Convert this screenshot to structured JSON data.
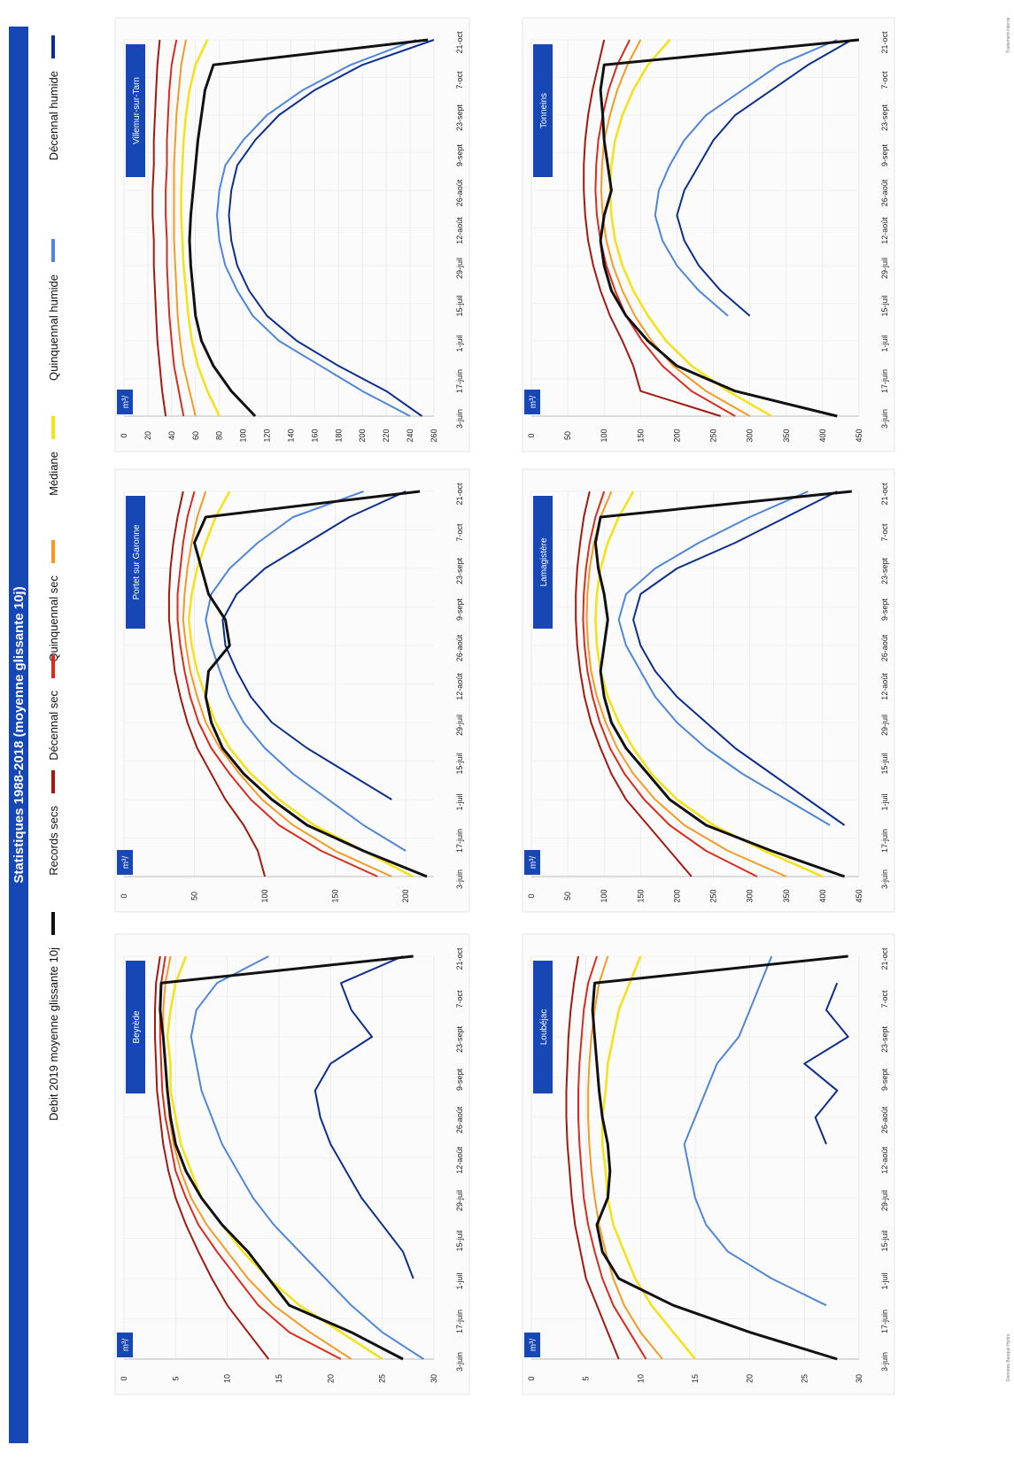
{
  "main_title": "Statistiques 1988-2018 (moyenne glissante 10j)",
  "legend": [
    {
      "label": "Décennal humide",
      "color": "#0d2e8c"
    },
    {
      "label": "Quinquennal humide",
      "color": "#4f86d9"
    },
    {
      "label": "Médiane",
      "color": "#f5e11c"
    },
    {
      "label": "Quinquennal sec",
      "color": "#f59a23"
    },
    {
      "label": "Décennal sec",
      "color": "#d62d20"
    },
    {
      "label": "Records secs",
      "color": "#a01a10"
    },
    {
      "label": "Debit 2019 moyenne glissante 10j",
      "color": "#111111"
    }
  ],
  "unit_label": "m³/",
  "x_ticks": [
    "3-juin",
    "17-juin",
    "1-juil",
    "15-juil",
    "29-juil",
    "12-août",
    "26-août",
    "9-sept",
    "23-sept",
    "7-oct",
    "21-oct"
  ],
  "chart_data": [
    {
      "type": "line",
      "title": "Beyrède",
      "xlabel": "",
      "ylabel": "m³/",
      "ylim": [
        0,
        30
      ],
      "yticks": [
        0,
        5,
        10,
        15,
        20,
        25,
        30
      ],
      "x": [
        0,
        10,
        20,
        30,
        40,
        50,
        60,
        70,
        80,
        90,
        100,
        110,
        120,
        130,
        140,
        150
      ],
      "series": [
        {
          "name": "Décennal humide",
          "values": [
            null,
            null,
            null,
            28,
            27,
            25,
            23,
            21.5,
            20,
            19,
            18.5,
            20,
            24,
            22,
            21,
            27
          ]
        },
        {
          "name": "Quinquennal humide",
          "values": [
            29,
            25,
            22,
            19.5,
            17,
            14.5,
            12.5,
            11,
            9.5,
            8.5,
            7.5,
            7,
            6.5,
            7,
            9,
            14
          ]
        },
        {
          "name": "Médiane",
          "values": [
            25,
            21,
            17,
            14,
            11.5,
            9.5,
            7.5,
            6.5,
            5.5,
            5,
            4.5,
            4.5,
            4.2,
            4.5,
            5,
            6
          ]
        },
        {
          "name": "Quinquennal sec",
          "values": [
            22,
            18,
            14.5,
            12,
            10,
            8,
            6.5,
            5.5,
            4.8,
            4.4,
            4.2,
            4,
            3.8,
            3.8,
            4,
            4.5
          ]
        },
        {
          "name": "Décennal sec",
          "values": [
            21,
            16,
            13,
            11,
            9,
            7.2,
            6,
            5,
            4.5,
            4,
            3.7,
            3.6,
            3.5,
            3.5,
            3.6,
            4
          ]
        },
        {
          "name": "Records secs",
          "values": [
            14,
            12,
            10,
            8.5,
            7.2,
            6,
            5,
            4.3,
            3.8,
            3.5,
            3.2,
            3.1,
            3,
            3,
            3.1,
            3.5
          ]
        },
        {
          "name": "Debit 2019 moyenne glissante 10j",
          "values": [
            27,
            22,
            16,
            14,
            12,
            9.5,
            7.5,
            6,
            5,
            4.5,
            4.2,
            4,
            3.8,
            3.5,
            3.6,
            28
          ]
        }
      ]
    },
    {
      "type": "line",
      "title": "Portet sur Garonne",
      "xlabel": "",
      "ylabel": "m³/",
      "ylim": [
        0,
        220
      ],
      "yticks": [
        0,
        50,
        100,
        150,
        200
      ],
      "x": [
        0,
        10,
        20,
        30,
        40,
        50,
        60,
        70,
        80,
        90,
        100,
        110,
        120,
        130,
        140,
        150
      ],
      "series": [
        {
          "name": "Décennal humide",
          "values": [
            null,
            null,
            null,
            190,
            160,
            130,
            105,
            90,
            80,
            72,
            70,
            80,
            100,
            130,
            160,
            200
          ]
        },
        {
          "name": "Quinquennal humide",
          "values": [
            null,
            200,
            170,
            145,
            120,
            100,
            85,
            75,
            68,
            62,
            58,
            62,
            75,
            95,
            120,
            170
          ]
        },
        {
          "name": "Médiane",
          "values": [
            205,
            170,
            135,
            110,
            90,
            75,
            65,
            58,
            52,
            48,
            46,
            48,
            52,
            58,
            65,
            75
          ]
        },
        {
          "name": "Quinquennal sec",
          "values": [
            190,
            150,
            120,
            98,
            82,
            68,
            58,
            52,
            47,
            44,
            42,
            43,
            45,
            48,
            52,
            58
          ]
        },
        {
          "name": "Décennal sec",
          "values": [
            180,
            140,
            110,
            90,
            75,
            62,
            53,
            47,
            43,
            40,
            38,
            38,
            40,
            42,
            45,
            50
          ]
        },
        {
          "name": "Records secs",
          "values": [
            100,
            95,
            85,
            72,
            62,
            52,
            45,
            40,
            36,
            34,
            32,
            32,
            33,
            35,
            38,
            42
          ]
        },
        {
          "name": "Debit 2019 moyenne glissante 10j",
          "values": [
            215,
            170,
            130,
            105,
            85,
            70,
            62,
            58,
            60,
            75,
            72,
            60,
            55,
            50,
            58,
            210
          ]
        }
      ]
    },
    {
      "type": "line",
      "title": "Villemur-sur-Tarn",
      "xlabel": "",
      "ylabel": "m³/",
      "ylim": [
        0,
        260
      ],
      "yticks": [
        0,
        20,
        40,
        60,
        80,
        100,
        120,
        140,
        160,
        180,
        200,
        220,
        240,
        260
      ],
      "x": [
        0,
        10,
        20,
        30,
        40,
        50,
        60,
        70,
        80,
        90,
        100,
        110,
        120,
        130,
        140,
        150
      ],
      "series": [
        {
          "name": "Décennal humide",
          "values": [
            250,
            220,
            180,
            145,
            120,
            105,
            95,
            90,
            88,
            90,
            95,
            110,
            130,
            160,
            200,
            260
          ]
        },
        {
          "name": "Quinquennal humide",
          "values": [
            240,
            200,
            165,
            130,
            108,
            95,
            85,
            80,
            78,
            80,
            85,
            100,
            120,
            150,
            190,
            245
          ]
        },
        {
          "name": "Médiane",
          "values": [
            80,
            70,
            62,
            57,
            54,
            52,
            50,
            49,
            48,
            48,
            49,
            50,
            52,
            55,
            60,
            70
          ]
        },
        {
          "name": "Quinquennal sec",
          "values": [
            60,
            55,
            50,
            47,
            45,
            44,
            43,
            42,
            42,
            42,
            42,
            43,
            44,
            46,
            48,
            52
          ]
        },
        {
          "name": "Décennal sec",
          "values": [
            50,
            46,
            42,
            40,
            38,
            37,
            36,
            36,
            35,
            35,
            36,
            36,
            37,
            38,
            40,
            44
          ]
        },
        {
          "name": "Records secs",
          "values": [
            35,
            32,
            30,
            28,
            27,
            26,
            25,
            25,
            24,
            24,
            25,
            25,
            26,
            27,
            28,
            30
          ]
        },
        {
          "name": "Debit 2019 moyenne glissante 10j",
          "values": [
            110,
            90,
            75,
            65,
            60,
            58,
            56,
            55,
            56,
            58,
            60,
            62,
            65,
            68,
            75,
            255
          ]
        }
      ]
    },
    {
      "type": "line",
      "title": "Loubéjac",
      "xlabel": "",
      "ylabel": "m³/",
      "ylim": [
        0,
        30
      ],
      "yticks": [
        0,
        5,
        10,
        15,
        20,
        25,
        30
      ],
      "x": [
        0,
        10,
        20,
        30,
        40,
        50,
        60,
        70,
        80,
        90,
        100,
        110,
        120,
        130,
        140,
        150
      ],
      "series": [
        {
          "name": "Décennal humide",
          "values": [
            null,
            null,
            null,
            null,
            28,
            null,
            null,
            null,
            27,
            26,
            28,
            25,
            29,
            27,
            28,
            null
          ]
        },
        {
          "name": "Quinquennal humide",
          "values": [
            null,
            null,
            27,
            22,
            18,
            16,
            15,
            14.5,
            14,
            15,
            16,
            17,
            19,
            20,
            21,
            22
          ]
        },
        {
          "name": "Médiane",
          "values": [
            15,
            13,
            11,
            9.5,
            8.5,
            7.5,
            7,
            6.8,
            6.5,
            6.5,
            6.8,
            7,
            7.5,
            8,
            9,
            10
          ]
        },
        {
          "name": "Quinquennal sec",
          "values": [
            12,
            10,
            8.5,
            7.5,
            6.8,
            6.2,
            5.8,
            5.5,
            5.3,
            5.2,
            5.2,
            5.3,
            5.5,
            5.8,
            6.2,
            7
          ]
        },
        {
          "name": "Décennal sec",
          "values": [
            10.5,
            9,
            7.5,
            6.5,
            5.8,
            5.2,
            4.8,
            4.6,
            4.4,
            4.3,
            4.3,
            4.4,
            4.6,
            4.8,
            5.2,
            6
          ]
        },
        {
          "name": "Records secs",
          "values": [
            8,
            7,
            6,
            5,
            4.5,
            4,
            3.7,
            3.5,
            3.3,
            3.2,
            3.2,
            3.3,
            3.4,
            3.6,
            3.9,
            4.3
          ]
        },
        {
          "name": "Debit 2019 moyenne glissante 10j",
          "values": [
            28,
            20,
            13,
            8,
            6.5,
            6,
            7,
            7.2,
            7,
            6.5,
            6.2,
            6,
            5.8,
            5.6,
            5.8,
            29
          ]
        }
      ]
    },
    {
      "type": "line",
      "title": "Lamagistère",
      "xlabel": "",
      "ylabel": "m³/",
      "ylim": [
        0,
        450
      ],
      "yticks": [
        0,
        50,
        100,
        150,
        200,
        250,
        300,
        350,
        400,
        450
      ],
      "x": [
        0,
        10,
        20,
        30,
        40,
        50,
        60,
        70,
        80,
        90,
        100,
        110,
        120,
        130,
        140,
        150
      ],
      "series": [
        {
          "name": "Décennal humide",
          "values": [
            null,
            null,
            430,
            380,
            330,
            280,
            240,
            200,
            170,
            150,
            140,
            150,
            200,
            280,
            350,
            420
          ]
        },
        {
          "name": "Quinquennal humide",
          "values": [
            null,
            null,
            410,
            350,
            290,
            240,
            200,
            170,
            150,
            130,
            120,
            130,
            170,
            230,
            300,
            380
          ]
        },
        {
          "name": "Médiane",
          "values": [
            400,
            320,
            250,
            200,
            165,
            140,
            120,
            105,
            95,
            90,
            88,
            90,
            95,
            105,
            120,
            140
          ]
        },
        {
          "name": "Quinquennal sec",
          "values": [
            350,
            270,
            210,
            170,
            140,
            118,
            102,
            90,
            82,
            78,
            76,
            77,
            80,
            86,
            95,
            110
          ]
        },
        {
          "name": "Décennal sec",
          "values": [
            310,
            240,
            190,
            155,
            128,
            108,
            94,
            84,
            77,
            73,
            71,
            72,
            75,
            80,
            88,
            100
          ]
        },
        {
          "name": "Records secs",
          "values": [
            220,
            190,
            160,
            130,
            110,
            95,
            82,
            73,
            67,
            63,
            61,
            61,
            63,
            67,
            72,
            80
          ]
        },
        {
          "name": "Debit 2019 moyenne glissante 10j",
          "values": [
            430,
            330,
            240,
            190,
            160,
            130,
            110,
            100,
            95,
            100,
            105,
            100,
            92,
            88,
            95,
            440
          ]
        }
      ]
    },
    {
      "type": "line",
      "title": "Tonneins",
      "xlabel": "",
      "ylabel": "m³/",
      "ylim": [
        0,
        450
      ],
      "yticks": [
        0,
        50,
        100,
        150,
        200,
        250,
        300,
        350,
        400,
        450
      ],
      "x": [
        0,
        10,
        20,
        30,
        40,
        50,
        60,
        70,
        80,
        90,
        100,
        110,
        120,
        130,
        140,
        150
      ],
      "series": [
        {
          "name": "Décennal humide",
          "values": [
            null,
            null,
            null,
            null,
            300,
            260,
            230,
            210,
            200,
            210,
            230,
            250,
            280,
            330,
            380,
            440
          ]
        },
        {
          "name": "Quinquennal humide",
          "values": [
            null,
            null,
            null,
            null,
            270,
            230,
            200,
            180,
            170,
            175,
            190,
            210,
            240,
            290,
            340,
            420
          ]
        },
        {
          "name": "Médiane",
          "values": [
            330,
            270,
            220,
            185,
            160,
            140,
            125,
            115,
            110,
            108,
            110,
            115,
            125,
            140,
            160,
            190
          ]
        },
        {
          "name": "Quinquennal sec",
          "values": [
            300,
            240,
            195,
            165,
            142,
            125,
            112,
            103,
            98,
            96,
            97,
            100,
            108,
            118,
            132,
            150
          ]
        },
        {
          "name": "Décennal sec",
          "values": [
            280,
            220,
            180,
            152,
            130,
            115,
            103,
            95,
            90,
            88,
            89,
            92,
            98,
            106,
            118,
            135
          ]
        },
        {
          "name": "Records secs",
          "values": [
            260,
            150,
            140,
            125,
            108,
            95,
            85,
            78,
            74,
            72,
            72,
            74,
            78,
            84,
            92,
            100
          ]
        },
        {
          "name": "Debit 2019 moyenne glissante 10j",
          "values": [
            420,
            280,
            200,
            160,
            130,
            110,
            100,
            95,
            100,
            110,
            105,
            100,
            98,
            95,
            100,
            450
          ]
        }
      ]
    }
  ],
  "footer_left": "Données Banque Hydro",
  "footer_right": "Traitement interne"
}
